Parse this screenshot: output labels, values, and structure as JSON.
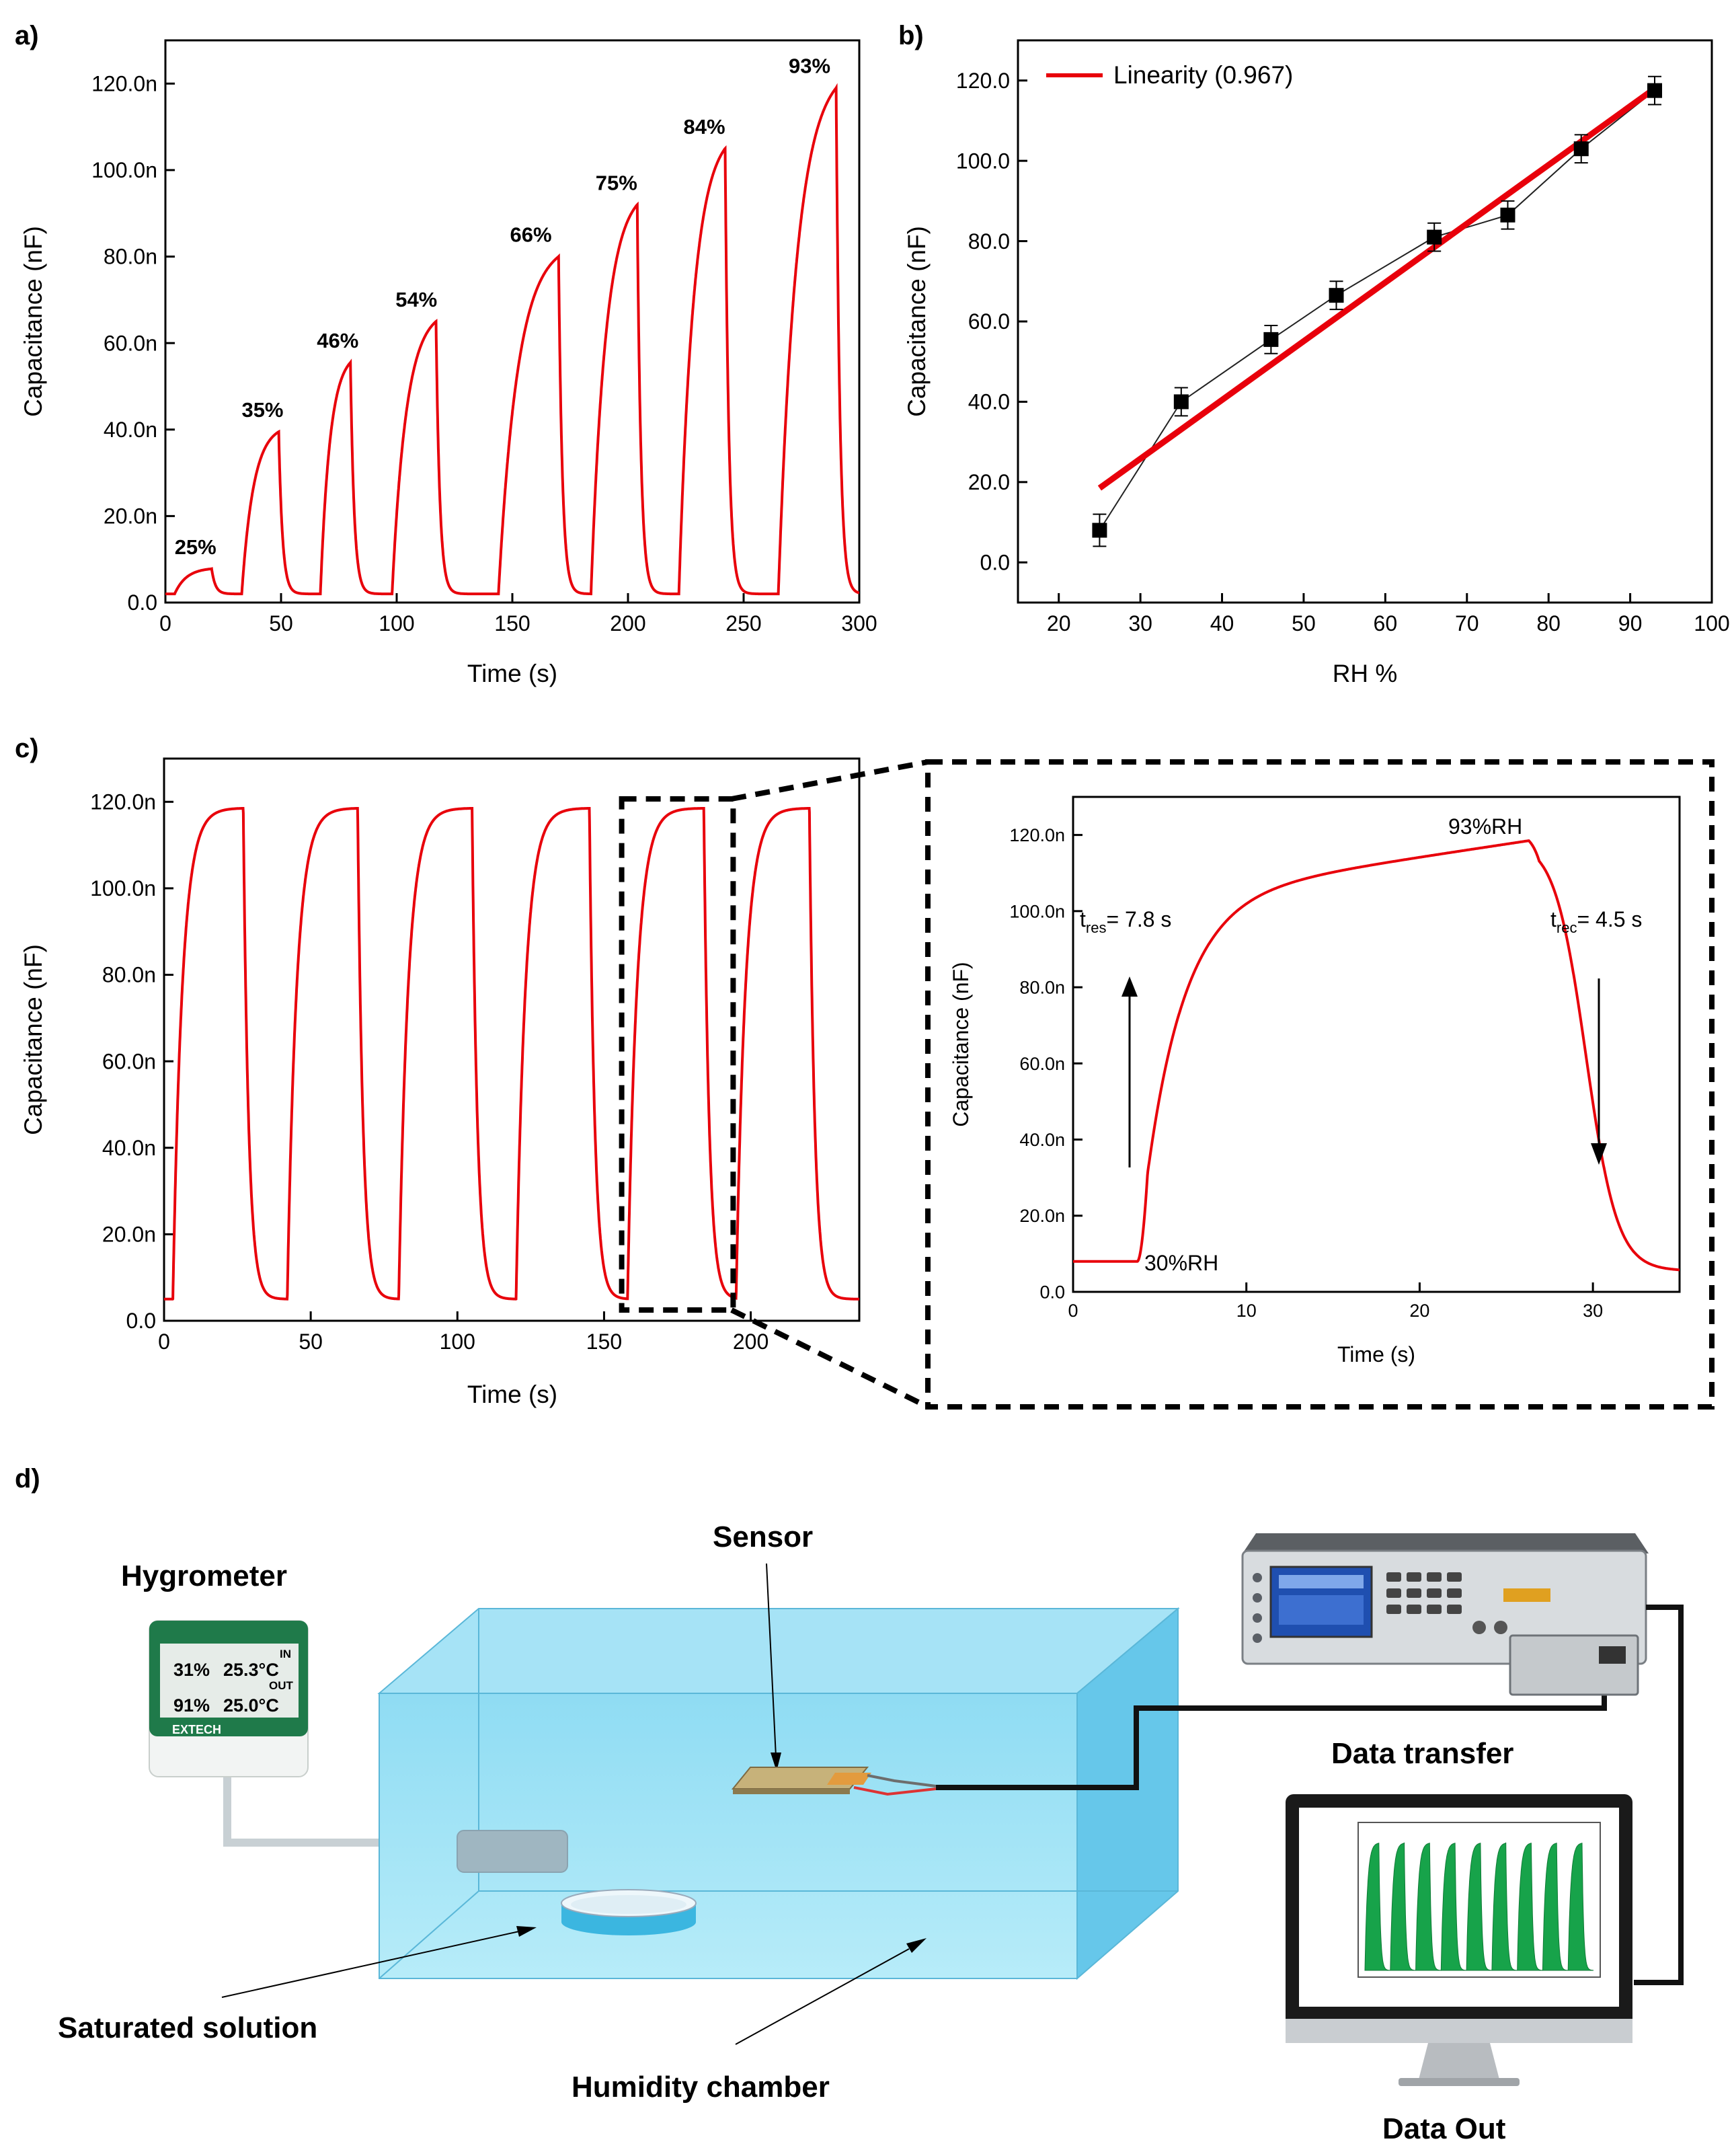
{
  "panel_labels": {
    "a": "a)",
    "b": "b)",
    "c": "c)",
    "d": "d)"
  },
  "chart_data": [
    {
      "id": "a",
      "type": "line",
      "xlabel": "Time (s)",
      "ylabel": "Capacitance (nF)",
      "xlim": [
        0,
        300
      ],
      "ylim": [
        0,
        130
      ],
      "xticks": [
        0,
        50,
        100,
        150,
        200,
        250,
        300
      ],
      "yticks": [
        0,
        20,
        40,
        60,
        80,
        100,
        120
      ],
      "ytick_labels": [
        "0.0",
        "20.0n",
        "40.0n",
        "60.0n",
        "80.0n",
        "100.0n",
        "120.0n"
      ],
      "color": "#e8000b",
      "baseline": 2,
      "pulses": [
        {
          "start": 4,
          "end": 20,
          "peak": 7.8,
          "label": "25%"
        },
        {
          "start": 33,
          "end": 49,
          "peak": 39.5,
          "label": "35%"
        },
        {
          "start": 67,
          "end": 80,
          "peak": 55.5,
          "label": "46%"
        },
        {
          "start": 98,
          "end": 117,
          "peak": 65,
          "label": "54%"
        },
        {
          "start": 144,
          "end": 170,
          "peak": 80,
          "label": "66%"
        },
        {
          "start": 184,
          "end": 204,
          "peak": 92,
          "label": "75%"
        },
        {
          "start": 222,
          "end": 242,
          "peak": 105,
          "label": "84%"
        },
        {
          "start": 265,
          "end": 290,
          "peak": 119,
          "label": "93%"
        }
      ]
    },
    {
      "id": "b",
      "type": "scatter",
      "xlabel": "RH %",
      "ylabel": "Capacitance (nF)",
      "xlim": [
        15,
        100
      ],
      "ylim": [
        -10,
        130
      ],
      "xticks": [
        20,
        30,
        40,
        50,
        60,
        70,
        80,
        90,
        100
      ],
      "yticks": [
        0,
        20,
        40,
        60,
        80,
        100,
        120
      ],
      "ytick_labels": [
        "0.0",
        "20.0",
        "40.0",
        "60.0",
        "80.0",
        "100.0",
        "120.0"
      ],
      "x": [
        25,
        35,
        46,
        54,
        66,
        75,
        84,
        93
      ],
      "y": [
        8,
        40,
        55.5,
        66.5,
        81,
        86.5,
        103,
        117.5
      ],
      "err": [
        4,
        3.5,
        3.5,
        3.5,
        3.5,
        3.5,
        3.5,
        3.5
      ],
      "fit": {
        "x": [
          25,
          93
        ],
        "y": [
          18.5,
          118
        ],
        "color": "#e8000b"
      },
      "legend": "Linearity (0.967)",
      "legend_position": "top-left"
    },
    {
      "id": "c",
      "type": "line",
      "xlabel": "Time (s)",
      "ylabel": "Capacitance (nF)",
      "xlim": [
        0,
        237
      ],
      "ylim": [
        0,
        130
      ],
      "xticks": [
        0,
        50,
        100,
        150,
        200
      ],
      "yticks": [
        0,
        20,
        40,
        60,
        80,
        100,
        120
      ],
      "ytick_labels": [
        "0.0",
        "20.0n",
        "40.0n",
        "60.0n",
        "80.0n",
        "100.0n",
        "120.0n"
      ],
      "color": "#e8000b",
      "baseline": 5,
      "peak": 118.5,
      "cycles": [
        [
          3,
          27
        ],
        [
          42,
          66
        ],
        [
          80,
          105
        ],
        [
          120,
          145
        ],
        [
          158,
          184
        ],
        [
          195,
          220
        ]
      ],
      "zoom_window": [
        156,
        194
      ]
    },
    {
      "id": "c-inset",
      "type": "line",
      "xlabel": "Time (s)",
      "ylabel": "Capacitance (nF)",
      "xlim": [
        0,
        35
      ],
      "ylim": [
        0,
        130
      ],
      "xticks": [
        0,
        10,
        20,
        30
      ],
      "yticks": [
        0,
        20,
        40,
        60,
        80,
        100,
        120
      ],
      "ytick_labels": [
        "0.0",
        "20.0n",
        "40.0n",
        "60.0n",
        "80.0n",
        "100.0n",
        "120.0n"
      ],
      "color": "#e8000b",
      "rise_start": 3.7,
      "fall_start": 26.3,
      "low": 8,
      "high": 118.5,
      "end_value": 5.5,
      "annotations": {
        "peak": "93%RH",
        "low": "30%RH",
        "tres_t": "t",
        "tres_sub": "res",
        "tres_val": "= 7.8 s",
        "trec_t": "t",
        "trec_sub": "rec",
        "trec_val": "= 4.5 s"
      }
    }
  ],
  "diagram": {
    "hygrometer": {
      "title": "Hygrometer",
      "brand": "EXTECH",
      "in_label": "IN",
      "out_label": "OUT",
      "in_rh": "31%",
      "in_temp": "25.3°C",
      "out_rh": "91%",
      "out_temp": "25.0°C"
    },
    "sensor_label": "Sensor",
    "saturated_label": "Saturated solution",
    "chamber_label": "Humidity chamber",
    "transfer_label": "Data transfer",
    "dataout_label": "Data Out",
    "colors": {
      "chamber": "#7dd3ef",
      "solution": "#3bb6e0",
      "monitor_wave": "#17a34a"
    }
  }
}
